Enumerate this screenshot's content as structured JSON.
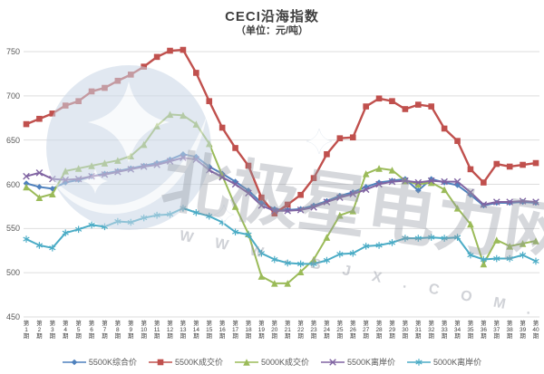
{
  "title": "CECI沿海指数",
  "subtitle": "（单位：元/吨）",
  "watermark": {
    "main_text": "北极星电力网",
    "sub_text": "W W W . B J X . C O M . C N"
  },
  "axis": {
    "x_label_prefix": "第",
    "x_label_suffix": "期",
    "tick_color": "#595959",
    "grid_color": "#dedede"
  },
  "chart_data": {
    "type": "line",
    "title": "CECI沿海指数",
    "subtitle": "（单位：元/吨）",
    "xlabel": "",
    "ylabel": "",
    "ylim": [
      450,
      750
    ],
    "yticks": [
      450,
      500,
      550,
      600,
      650,
      700,
      750
    ],
    "grid": true,
    "legend_position": "bottom",
    "categories": [
      1,
      2,
      3,
      4,
      5,
      6,
      7,
      8,
      9,
      10,
      11,
      12,
      13,
      14,
      15,
      16,
      17,
      18,
      19,
      20,
      21,
      22,
      23,
      24,
      25,
      26,
      27,
      28,
      29,
      30,
      31,
      32,
      33,
      34,
      35,
      36,
      37,
      38,
      39,
      40
    ],
    "series": [
      {
        "name": "5500K综合价",
        "color": "#4f81bd",
        "marker": "diamond",
        "values": [
          601,
          597,
          595,
          602,
          605,
          609,
          612,
          615,
          618,
          621,
          624,
          628,
          634,
          631,
          620,
          612,
          603,
          593,
          579,
          572,
          571,
          572,
          576,
          581,
          587,
          591,
          597,
          602,
          604,
          606,
          593,
          606,
          602,
          599,
          588,
          576,
          579,
          579,
          580,
          579
        ]
      },
      {
        "name": "5500K成交价",
        "color": "#c0504d",
        "marker": "square",
        "values": [
          668,
          674,
          680,
          689,
          694,
          705,
          709,
          717,
          724,
          733,
          744,
          751,
          752,
          726,
          694,
          664,
          641,
          621,
          585,
          567,
          577,
          588,
          607,
          634,
          652,
          653,
          688,
          697,
          694,
          685,
          690,
          688,
          663,
          649,
          617,
          602,
          623,
          620,
          622,
          624
        ]
      },
      {
        "name": "5000K成交价",
        "color": "#9bbb59",
        "marker": "triangle",
        "values": [
          597,
          585,
          589,
          615,
          618,
          621,
          624,
          627,
          632,
          645,
          666,
          679,
          678,
          668,
          646,
          610,
          575,
          544,
          496,
          488,
          488,
          501,
          515,
          540,
          565,
          570,
          612,
          618,
          616,
          604,
          600,
          602,
          594,
          573,
          555,
          510,
          537,
          530,
          533,
          536
        ]
      },
      {
        "name": "5500K离岸价",
        "color": "#8064a2",
        "marker": "x",
        "values": [
          609,
          613,
          606,
          605,
          606,
          609,
          611,
          614,
          617,
          620,
          622,
          626,
          630,
          628,
          616,
          608,
          600,
          590,
          576,
          570,
          570,
          571,
          574,
          580,
          585,
          589,
          594,
          600,
          603,
          604,
          602,
          604,
          603,
          603,
          591,
          577,
          580,
          580,
          581,
          580
        ]
      },
      {
        "name": "5000K离岸价",
        "color": "#4bacc6",
        "marker": "asterisk",
        "values": [
          538,
          531,
          528,
          545,
          549,
          554,
          552,
          558,
          557,
          562,
          565,
          566,
          573,
          568,
          564,
          557,
          546,
          543,
          522,
          515,
          511,
          510,
          510,
          514,
          521,
          522,
          530,
          531,
          534,
          539,
          539,
          540,
          539,
          540,
          520,
          515,
          516,
          516,
          520,
          513
        ]
      }
    ]
  }
}
